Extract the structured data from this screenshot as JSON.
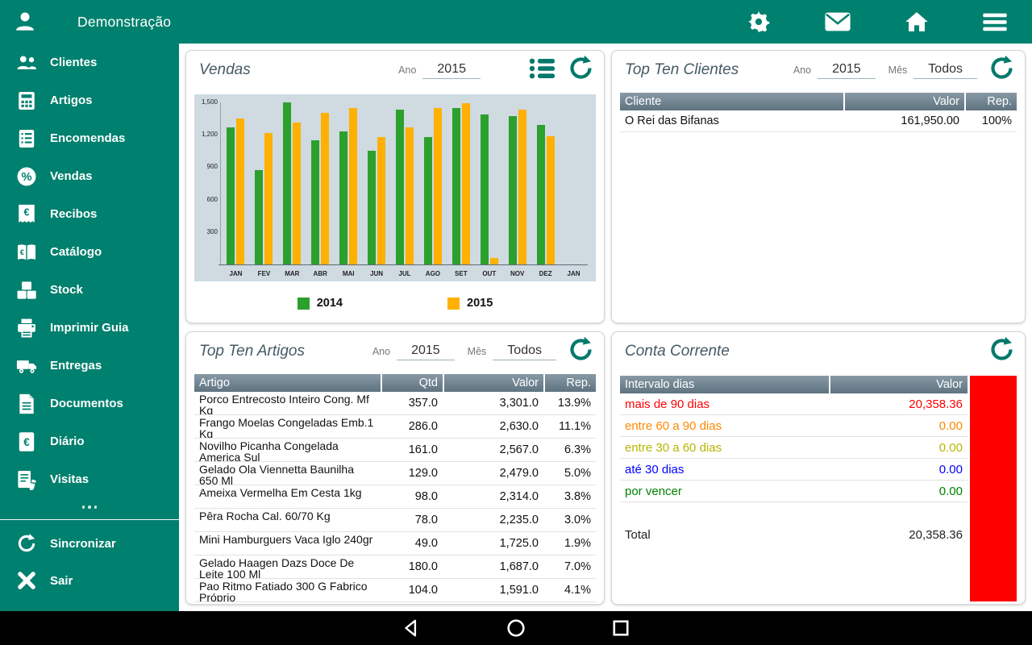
{
  "colors": {
    "accent": "#00806E",
    "refresh": "#00796B"
  },
  "topbar": {
    "title": "Demonstração",
    "icons": [
      "user-icon",
      "settings-icon",
      "mail-icon",
      "home-icon",
      "menu-icon"
    ]
  },
  "sidebar": {
    "items": [
      {
        "id": "clientes",
        "label": "Clientes",
        "icon": "clients-icon"
      },
      {
        "id": "artigos",
        "label": "Artigos",
        "icon": "articles-icon"
      },
      {
        "id": "encomendas",
        "label": "Encomendas",
        "icon": "orders-icon"
      },
      {
        "id": "vendas",
        "label": "Vendas",
        "icon": "sales-icon"
      },
      {
        "id": "recibos",
        "label": "Recibos",
        "icon": "receipts-icon"
      },
      {
        "id": "catalogo",
        "label": "Catálogo",
        "icon": "catalog-icon"
      },
      {
        "id": "stock",
        "label": "Stock",
        "icon": "stock-icon"
      },
      {
        "id": "imprimir-guia",
        "label": "Imprimir Guia",
        "icon": "printer-icon"
      },
      {
        "id": "entregas",
        "label": "Entregas",
        "icon": "truck-icon"
      },
      {
        "id": "documentos",
        "label": "Documentos",
        "icon": "documents-icon"
      },
      {
        "id": "diario",
        "label": "Diário",
        "icon": "journal-icon"
      },
      {
        "id": "visitas",
        "label": "Visitas",
        "icon": "visits-icon"
      }
    ],
    "footer_items": [
      {
        "id": "sincronizar",
        "label": "Sincronizar",
        "icon": "sync-icon"
      },
      {
        "id": "sair",
        "label": "Sair",
        "icon": "exit-icon"
      }
    ]
  },
  "cards": {
    "vendas": {
      "title": "Vendas",
      "ano_label": "Ano",
      "ano_value": "2015"
    },
    "top_clientes": {
      "title": "Top Ten Clientes",
      "ano_label": "Ano",
      "ano_value": "2015",
      "mes_label": "Mês",
      "mes_value": "Todos",
      "headers": [
        "Cliente",
        "Valor",
        "Rep."
      ],
      "rows": [
        [
          "O Rei das Bifanas",
          "161,950.00",
          "100%"
        ]
      ]
    },
    "top_artigos": {
      "title": "Top Ten Artigos",
      "ano_label": "Ano",
      "ano_value": "2015",
      "mes_label": "Mês",
      "mes_value": "Todos",
      "headers": [
        "Artigo",
        "Qtd",
        "Valor",
        "Rep."
      ],
      "rows": [
        [
          "Porco Entrecosto Inteiro Cong. Mf Kg",
          "357.0",
          "3,301.0",
          "13.9%"
        ],
        [
          "Frango Moelas Congeladas Emb.1 Kg",
          "286.0",
          "2,630.0",
          "11.1%"
        ],
        [
          "Novilho Picanha Congelada America Sul",
          "161.0",
          "2,567.0",
          "6.3%"
        ],
        [
          "Gelado Ola Viennetta Baunilha 650 Ml",
          "129.0",
          "2,479.0",
          "5.0%"
        ],
        [
          "Ameixa Vermelha Em Cesta 1kg",
          "98.0",
          "2,314.0",
          "3.8%"
        ],
        [
          "Pêra Rocha Cal. 60/70 Kg",
          "78.0",
          "2,235.0",
          "3.0%"
        ],
        [
          "Mini Hamburguers Vaca Iglo 240gr",
          "49.0",
          "1,725.0",
          "1.9%"
        ],
        [
          "Gelado Haagen Dazs Doce De Leite 100 Ml",
          "180.0",
          "1,687.0",
          "7.0%"
        ],
        [
          "Pao Ritmo Fatiado 300 G Fabrico Próprio",
          "104.0",
          "1,591.0",
          "4.1%"
        ]
      ]
    },
    "conta_corrente": {
      "title": "Conta Corrente",
      "headers": [
        "Intervalo dias",
        "Valor"
      ],
      "rows": [
        {
          "label": "mais de 90 dias",
          "value": "20,358.36",
          "color": "#FF0000"
        },
        {
          "label": "entre 60 a 90 dias",
          "value": "0.00",
          "color": "#FF8800"
        },
        {
          "label": "entre 30 a 60 dias",
          "value": "0.00",
          "color": "#B8B400"
        },
        {
          "label": "até 30 dias",
          "value": "0.00",
          "color": "#0000FF"
        },
        {
          "label": "por vencer",
          "value": "0.00",
          "color": "#008000"
        }
      ],
      "total_label": "Total",
      "total_value": "20,358.36",
      "bar_color": "#FF0000"
    }
  },
  "chart_data": {
    "type": "bar",
    "title": "Vendas",
    "categories": [
      "JAN",
      "FEV",
      "MAR",
      "ABR",
      "MAI",
      "JUN",
      "JUL",
      "AGO",
      "SET",
      "OUT",
      "NOV",
      "DEZ",
      "JAN"
    ],
    "series": [
      {
        "name": "2014",
        "color": "#2CA02C",
        "values": [
          1270,
          870,
          1500,
          1150,
          1230,
          1050,
          1430,
          1180,
          1450,
          1390,
          1370,
          1290,
          0
        ]
      },
      {
        "name": "2015",
        "color": "#FFB000",
        "values": [
          1350,
          1220,
          1310,
          1400,
          1450,
          1180,
          1270,
          1450,
          1490,
          60,
          1430,
          1190,
          0
        ]
      }
    ],
    "ylim": [
      0,
      1500
    ],
    "yticks": [
      300,
      600,
      900,
      1200,
      1500
    ],
    "ytick_labels": [
      "300",
      "600",
      "900",
      "1,200",
      "1,500"
    ],
    "legend_position": "bottom",
    "grid": false
  },
  "navbar": {
    "icons": [
      "back-icon",
      "home-circle-icon",
      "recents-icon"
    ]
  }
}
